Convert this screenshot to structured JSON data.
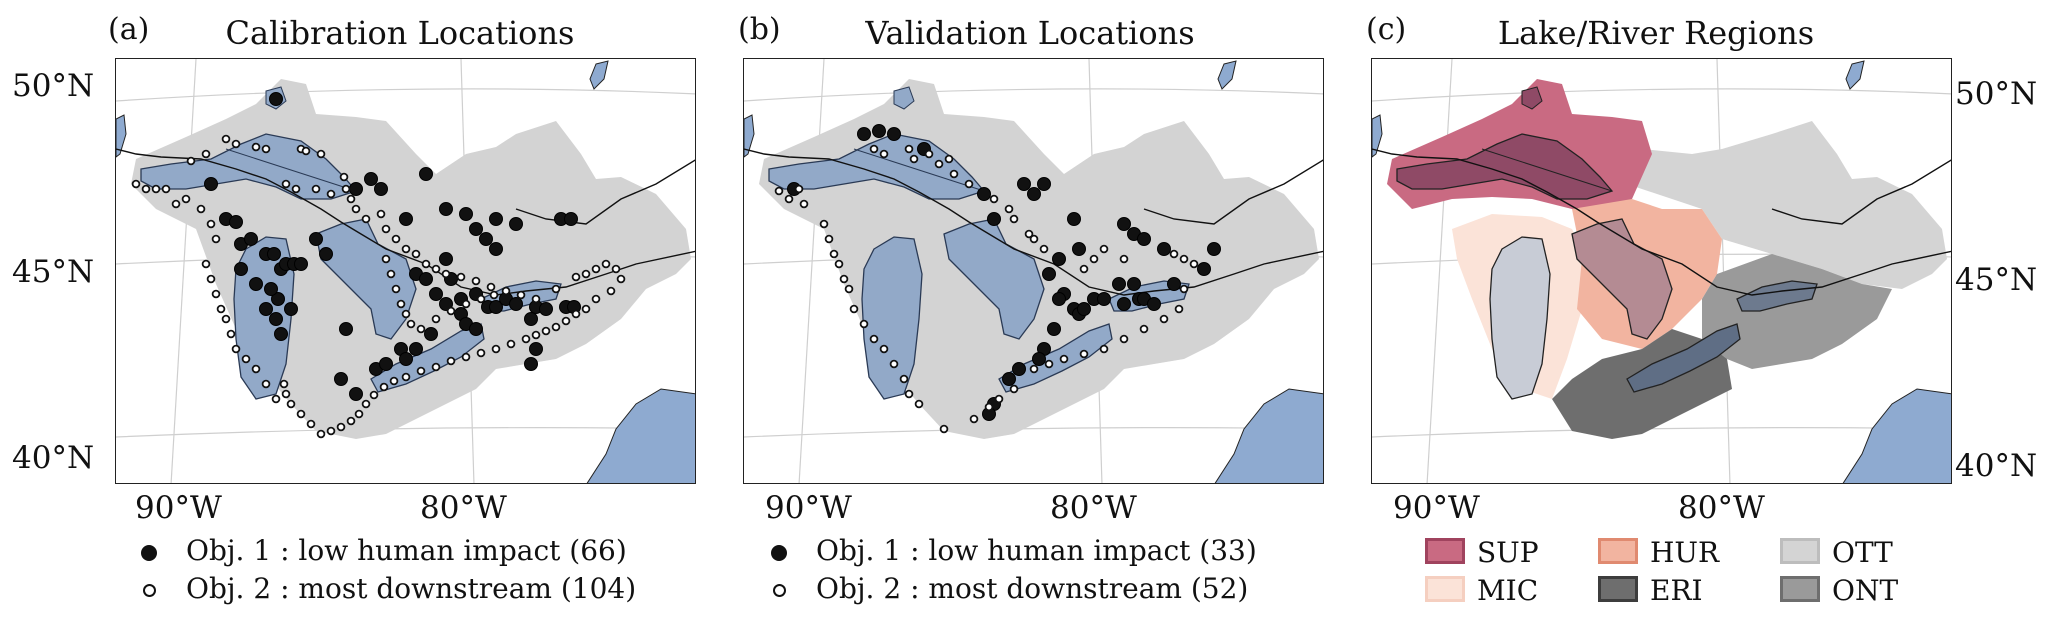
{
  "panels": [
    {
      "label": "(a)",
      "title": "Calibration Locations"
    },
    {
      "label": "(b)",
      "title": "Validation Locations"
    },
    {
      "label": "(c)",
      "title": "Lake/River Regions"
    }
  ],
  "lat_labels_left": [
    "50°N",
    "45°N",
    "40°N"
  ],
  "lat_labels_right": [
    "50°N",
    "45°N",
    "40°N"
  ],
  "lon_labels": [
    "90°W",
    "80°W"
  ],
  "legend_a": {
    "obj1": "Obj. 1 :  low human impact (66)",
    "obj2": "Obj. 2 :  most downstream (104)"
  },
  "legend_b": {
    "obj1": "Obj. 1 :  low human impact (33)",
    "obj2": "Obj. 2 :  most downstream (52)"
  },
  "regions": [
    {
      "code": "SUP",
      "fill": "#c96a82",
      "edge": "#a0435e"
    },
    {
      "code": "HUR",
      "fill": "#f2b4a0",
      "edge": "#e08a70"
    },
    {
      "code": "OTT",
      "fill": "#d4d4d4",
      "edge": "#bdbdbd"
    },
    {
      "code": "MIC",
      "fill": "#fbe3d8",
      "edge": "#f5cfc0"
    },
    {
      "code": "ERI",
      "fill": "#6e6e6e",
      "edge": "#3d3d3d"
    },
    {
      "code": "ONT",
      "fill": "#9a9a9a",
      "edge": "#6e6e6e"
    }
  ],
  "colors": {
    "water": "#8eaad0",
    "lake": "#92a9c8",
    "basin": "#d3d3d3",
    "station": "#111111"
  }
}
